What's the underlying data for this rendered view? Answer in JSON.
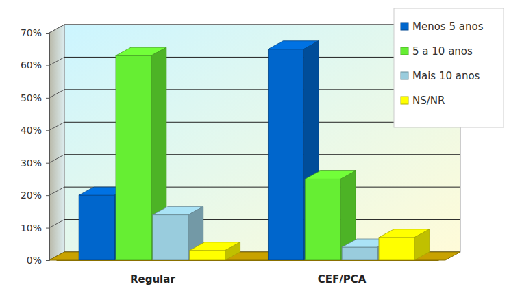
{
  "chart_data": {
    "type": "bar",
    "categories": [
      "Regular",
      "CEF/PCA"
    ],
    "series": [
      {
        "name": "Menos 5 anos",
        "color": "#0066cc",
        "values": [
          20,
          65
        ]
      },
      {
        "name": "5 a 10 anos",
        "color": "#66ee33",
        "values": [
          63,
          25
        ]
      },
      {
        "name": "Mais 10 anos",
        "color": "#99ccdd",
        "values": [
          14,
          4
        ]
      },
      {
        "name": "NS/NR",
        "color": "#ffff00",
        "values": [
          3,
          7
        ]
      }
    ],
    "ylim": [
      0,
      70
    ],
    "yticks": [
      {
        "value": 0,
        "label": "0%"
      },
      {
        "value": 10,
        "label": "10%"
      },
      {
        "value": 20,
        "label": "20%"
      },
      {
        "value": 30,
        "label": "30%"
      },
      {
        "value": 40,
        "label": "40%"
      },
      {
        "value": 50,
        "label": "50%"
      },
      {
        "value": 60,
        "label": "60%"
      },
      {
        "value": 70,
        "label": "70%"
      }
    ],
    "grid": true,
    "legend": "top-right"
  }
}
